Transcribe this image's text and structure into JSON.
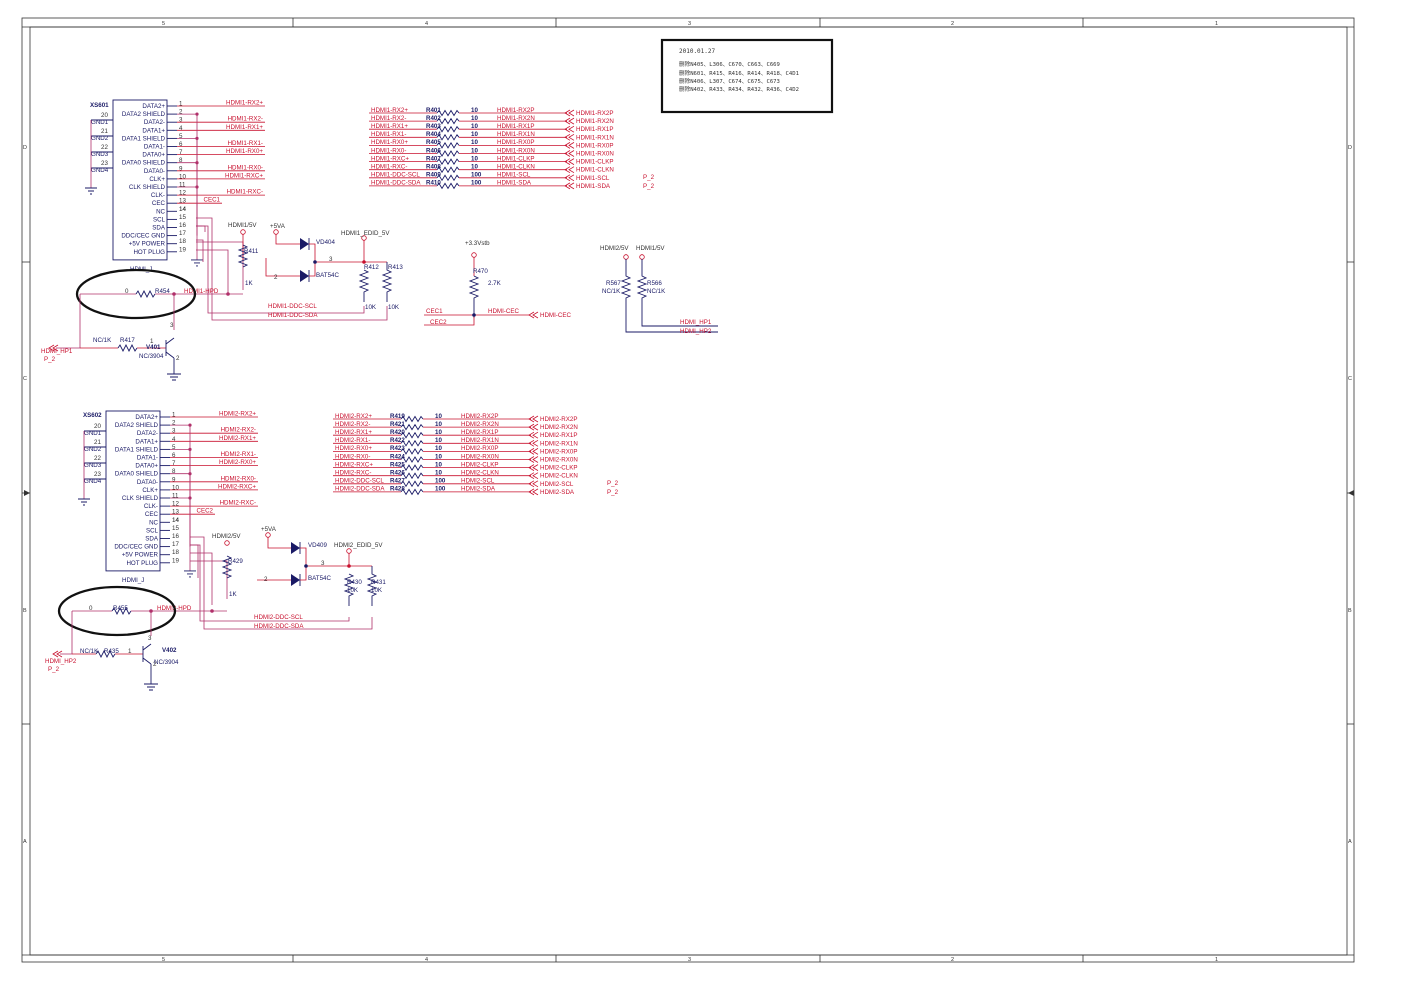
{
  "frame": {
    "top_cols": [
      "5",
      "4",
      "3",
      "2",
      "1"
    ],
    "bottom_cols": [
      "5",
      "4",
      "3",
      "2",
      "1"
    ],
    "left_rows": [
      "D",
      "C",
      "B",
      "A"
    ],
    "right_rows": [
      "D",
      "C",
      "B",
      "A"
    ]
  },
  "note": {
    "date": "2010.01.27",
    "lines": [
      "删除N405、L306、C670、C663、C669",
      "删除N601、R415、R416、R414、R418、C4D1",
      "删除N406、L307、C674、C675、C673",
      "删除N402、R433、R434、R432、R436、C4D2"
    ]
  },
  "conn1": {
    "ref": "XS601",
    "name": "HDMI_J",
    "pins_left": [
      "DATA2+",
      "DATA2 SHIELD",
      "DATA2-",
      "DATA1+",
      "DATA1 SHIELD",
      "DATA1-",
      "DATA0+",
      "DATA0 SHIELD",
      "DATA0-",
      "CLK+",
      "CLK SHIELD",
      "CLK-",
      "CEC",
      "NC",
      "SCL",
      "SDA",
      "DDC/CEC GND",
      "+5V POWER",
      "HOT PLUG"
    ],
    "pin_nums": [
      "1",
      "2",
      "3",
      "4",
      "5",
      "6",
      "7",
      "8",
      "9",
      "10",
      "11",
      "12",
      "13",
      "14",
      "15",
      "16",
      "17",
      "18",
      "19"
    ],
    "gnd": [
      "GND1",
      "GND2",
      "GND3",
      "GND4"
    ],
    "gnd_nums": [
      "20",
      "21",
      "22",
      "23"
    ],
    "nets": [
      "HDMI1-RX2+",
      "HDMI1-RX2-",
      "HDMI1-RX1+",
      "HDMI1-RX1-",
      "HDMI1-RX0+",
      "HDMI1-RX0-",
      "HDMI1-RXC+",
      "HDMI1-RXC-",
      "CEC1"
    ]
  },
  "conn2": {
    "ref": "XS602",
    "name": "HDMI_J",
    "nets": [
      "HDMI2-RX2+",
      "HDMI2-RX2-",
      "HDMI2-RX1+",
      "HDMI2-RX1-",
      "HDMI2-RX0+",
      "HDMI2-RX0-",
      "HDMI2-RXC+",
      "HDMI2-RXC-",
      "CEC2"
    ]
  },
  "res1": {
    "in": [
      "HDMI1-RX2+",
      "HDMI1-RX2-",
      "HDMI1-RX1+",
      "HDMI1-RX1-",
      "HDMI1-RX0+",
      "HDMI1-RX0-",
      "HDMI1-RXC+",
      "HDMI1-RXC-",
      "HDMI1-DDC-SCL",
      "HDMI1-DDC-SDA"
    ],
    "ref": [
      "R401",
      "R402",
      "R403",
      "R404",
      "R405",
      "R406",
      "R407",
      "R408",
      "R409",
      "R410"
    ],
    "val": [
      "10",
      "10",
      "10",
      "10",
      "10",
      "10",
      "10",
      "10",
      "100",
      "100"
    ],
    "out": [
      "HDMI1-RX2P",
      "HDMI1-RX2N",
      "HDMI1-RX1P",
      "HDMI1-RX1N",
      "HDMI1-RX0P",
      "HDMI1-RX0N",
      "HDMI1-CLKP",
      "HDMI1-CLKN",
      "HDMI1-SCL",
      "HDMI1-SDA"
    ],
    "port": [
      "HDMI1-RX2P",
      "HDMI1-RX2N",
      "HDMI1-RX1P",
      "HDMI1-RX1N",
      "HDMI1-RX0P",
      "HDMI1-RX0N",
      "HDMI1-CLKP",
      "HDMI1-CLKN",
      "HDMI1-SCL",
      "HDMI1-SDA"
    ],
    "page": "P_2"
  },
  "res2": {
    "in": [
      "HDMI2-RX2+",
      "HDMI2-RX2-",
      "HDMI2-RX1+",
      "HDMI2-RX1-",
      "HDMI2-RX0+",
      "HDMI2-RX0-",
      "HDMI2-RXC+",
      "HDMI2-RXC-",
      "HDMI2-DDC-SCL",
      "HDMI2-DDC-SDA"
    ],
    "ref": [
      "R419",
      "R421",
      "R420",
      "R422",
      "R423",
      "R424",
      "R425",
      "R426",
      "R427",
      "R428"
    ],
    "val": [
      "10",
      "10",
      "10",
      "10",
      "10",
      "10",
      "10",
      "10",
      "100",
      "100"
    ],
    "out": [
      "HDMI2-RX2P",
      "HDMI2-RX2N",
      "HDMI2-RX1P",
      "HDMI2-RX1N",
      "HDMI2-RX0P",
      "HDMI2-RX0N",
      "HDMI2-CLKP",
      "HDMI2-CLKN",
      "HDMI2-SCL",
      "HDMI2-SDA"
    ],
    "port": [
      "HDMI2-RX2P",
      "HDMI2-RX2N",
      "HDMI2-RX1P",
      "HDMI2-RX1N",
      "HDMI2-RX0P",
      "HDMI2-RX0N",
      "HDMI2-CLKP",
      "HDMI2-CLKN",
      "HDMI2-SCL",
      "HDMI2-SDA"
    ],
    "page": "P_2"
  },
  "top_circuit": {
    "hdmi5v": "HDMI1/5V",
    "p5va": "+5VA",
    "edid": "HDMI1_EDID_5V",
    "vd": "VD404",
    "diode": "BAT54C",
    "r411": "R411",
    "r411v": "1K",
    "r412": "R412",
    "r413": "R413",
    "r412v": "10K",
    "r413v": "10K",
    "scl": "HDMI1-DDC-SCL",
    "sda": "HDMI1-DDC-SDA",
    "r454v": "0",
    "r454": "R454",
    "hpd": "HDMI1-HPD",
    "r417v": "NC/1K",
    "r417": "R417",
    "q": "V401",
    "qv": "NC/3904",
    "hp": "HDMI_HP1",
    "pg": "P_2",
    "pin1": "1",
    "pin2": "2",
    "pin3": "3"
  },
  "bot_circuit": {
    "hdmi5v": "HDMI2/5V",
    "p5va": "+5VA",
    "edid": "HDMI2_EDID_5V",
    "vd": "VD409",
    "diode": "BAT54C",
    "r429": "R429",
    "r429v": "1K",
    "r430": "R430",
    "r431": "R431",
    "r430v": "10K",
    "r431v": "10K",
    "scl": "HDMI2-DDC-SCL",
    "sda": "HDMI2-DDC-SDA",
    "r455v": "0",
    "r455": "R455",
    "hpd": "HDMI2-HPD",
    "r435v": "NC/1K",
    "r435": "R435",
    "q": "V402",
    "qv": "NC/3904",
    "hp": "HDMI_HP2",
    "pg": "P_2",
    "pin1": "1",
    "pin2": "2",
    "pin3": "3"
  },
  "cec": {
    "vcc": "+3.3Vstb",
    "r": "R470",
    "rv": "2.7K",
    "c1": "CEC1",
    "c2": "CEC2",
    "net": "HDMI-CEC",
    "port": "HDMI-CEC"
  },
  "hp_block": {
    "v2": "HDMI2/5V",
    "v1": "HDMI1/5V",
    "r567": "R567",
    "r567v": "NC/1K",
    "r566": "R566",
    "r566v": "NC/1K",
    "hp1": "HDMI_HP1",
    "hp2": "HDMI_HP2"
  }
}
